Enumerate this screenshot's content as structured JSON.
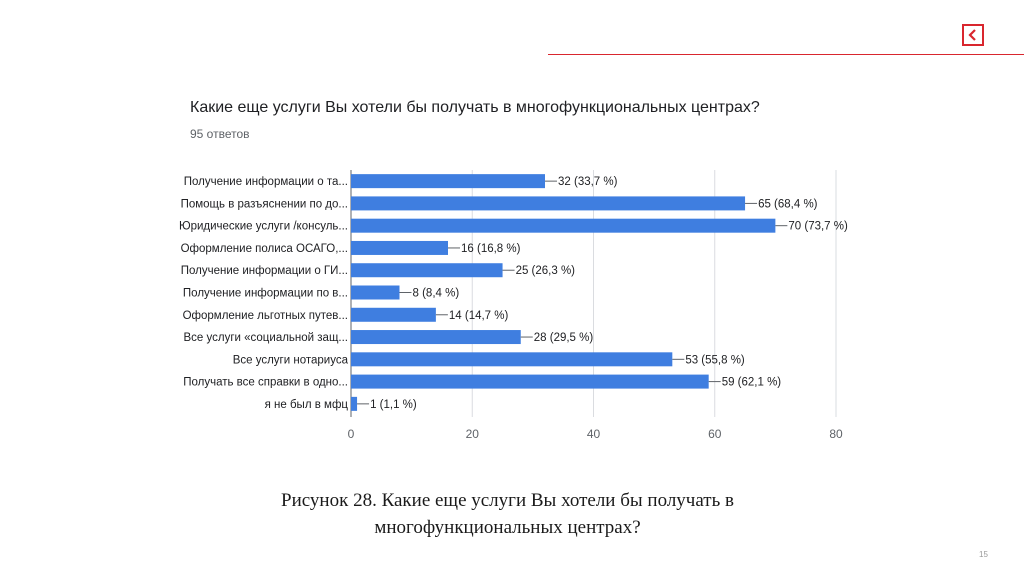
{
  "slide": {
    "page_number": "15",
    "accent_color": "#d9262e",
    "nav_icon": "chevron-left-icon"
  },
  "form": {
    "question": "Какие еще услуги Вы хотели бы получать в многофункциональных центрах?",
    "responses": "95 ответов"
  },
  "caption": {
    "line1": "Рисунок 28. Какие еще услуги Вы хотели бы получать в",
    "line2": "многофункциональных центрах?"
  },
  "chart_data": {
    "type": "bar",
    "orientation": "horizontal",
    "bar_color": "#3f7ee0",
    "categories": [
      "Получение информации о та...",
      "Помощь в разъяснении по до...",
      "Юридические услуги /консуль...",
      "Оформление полиса ОСАГО,...",
      "Получение информации о ГИ...",
      "Получение информации по в...",
      "Оформление льготных путев...",
      "Все услуги «социальной защ...",
      "Все услуги нотариуса",
      "Получать все справки в одно...",
      "я не был в мфц"
    ],
    "values": [
      32,
      65,
      70,
      16,
      25,
      8,
      14,
      28,
      53,
      59,
      1
    ],
    "data_labels": [
      "32 (33,7 %)",
      "65 (68,4 %)",
      "70 (73,7 %)",
      "16 (16,8 %)",
      "25 (26,3 %)",
      "8 (8,4 %)",
      "14 (14,7 %)",
      "28 (29,5 %)",
      "53 (55,8 %)",
      "59 (62,1 %)",
      "1 (1,1 %)"
    ],
    "xlim": [
      0,
      80
    ],
    "x_ticks": [
      "0",
      "20",
      "40",
      "60",
      "80"
    ],
    "grid": "vertical"
  }
}
